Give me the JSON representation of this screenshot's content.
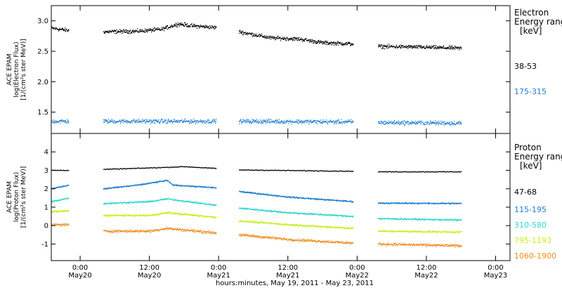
{
  "chart_data": {
    "xlabel": "hours:minutes, May 19, 2011 - May 23, 2011",
    "x_ticks": [
      {
        "time": "May 20 00:00",
        "line1": "0:00",
        "line2": "May20"
      },
      {
        "time": "May 20 12:00",
        "line1": "12:00",
        "line2": "May20"
      },
      {
        "time": "May 21 00:00",
        "line1": "0:00",
        "line2": "May21"
      },
      {
        "time": "May 21 12:00",
        "line1": "12:00",
        "line2": "May21"
      },
      {
        "time": "May 22 00:00",
        "line1": "0:00",
        "line2": "May22"
      },
      {
        "time": "May 22 12:00",
        "line1": "12:00",
        "line2": "May22"
      },
      {
        "time": "May 23 00:00",
        "line1": "0:00",
        "line2": "May23"
      }
    ],
    "xlim": [
      "May 19 19:00",
      "May 23 02:30"
    ],
    "data_segments": [
      [
        "May 19 19:00",
        "May 19 22:00"
      ],
      [
        "May 20 04:00",
        "May 20 23:30"
      ],
      [
        "May 21 03:30",
        "May 21 23:15"
      ],
      [
        "May 22 03:30",
        "May 22 18:00"
      ]
    ],
    "panels": [
      {
        "id": "electron",
        "type": "scatter",
        "ylabel_lines": [
          "ACE EPAM",
          "log(Electron Flux)",
          "[1/(cm²s ster MeV)]"
        ],
        "ylim": [
          1.15,
          3.25
        ],
        "y_ticks": [
          1.5,
          2.0,
          2.5,
          3.0
        ],
        "y_tick_labels": [
          "1.5",
          "2.0",
          "2.5",
          "3.0"
        ],
        "legend_title": [
          "Electron",
          "Energy ranges",
          "[keV]"
        ],
        "series": [
          {
            "name": "38-53",
            "color": "#000000",
            "scatter": 0.045,
            "trend": [
              [
                "May 19 19:00",
                2.88
              ],
              [
                "May 19 22:00",
                2.84
              ],
              [
                "May 20 04:00",
                2.82
              ],
              [
                "May 20 10:00",
                2.83
              ],
              [
                "May 20 14:00",
                2.86
              ],
              [
                "May 20 17:00",
                2.95
              ],
              [
                "May 20 19:00",
                2.92
              ],
              [
                "May 20 23:30",
                2.89
              ],
              [
                "May 21 03:30",
                2.82
              ],
              [
                "May 21 09:00",
                2.72
              ],
              [
                "May 21 14:00",
                2.7
              ],
              [
                "May 21 18:00",
                2.64
              ],
              [
                "May 21 23:15",
                2.62
              ],
              [
                "May 22 03:30",
                2.58
              ],
              [
                "May 22 10:00",
                2.57
              ],
              [
                "May 22 18:00",
                2.55
              ]
            ]
          },
          {
            "name": "175-315",
            "color": "#1e7fd0",
            "scatter": 0.05,
            "trend": [
              [
                "May 19 19:00",
                1.35
              ],
              [
                "May 20 23:30",
                1.35
              ],
              [
                "May 21 03:30",
                1.35
              ],
              [
                "May 21 23:15",
                1.34
              ],
              [
                "May 22 03:30",
                1.33
              ],
              [
                "May 22 18:00",
                1.32
              ]
            ]
          }
        ]
      },
      {
        "id": "proton",
        "type": "scatter",
        "ylabel_lines": [
          "ACE EPAM",
          "log(Proton Flux)",
          "[1/(cm²s ster MeV)]"
        ],
        "ylim": [
          -1.9,
          5.0
        ],
        "y_ticks": [
          -1,
          0,
          1,
          2,
          3,
          4
        ],
        "y_tick_labels": [
          "-1",
          "0",
          "1",
          "2",
          "3",
          "4"
        ],
        "legend_title": [
          "Proton",
          "Energy ranges",
          "[keV]"
        ],
        "series": [
          {
            "name": "47-68",
            "color": "#000000",
            "scatter": 0.03,
            "trend": [
              [
                "May 19 19:00",
                3.0
              ],
              [
                "May 19 22:00",
                3.0
              ],
              [
                "May 20 04:00",
                3.05
              ],
              [
                "May 20 14:00",
                3.15
              ],
              [
                "May 20 18:00",
                3.2
              ],
              [
                "May 20 23:30",
                3.1
              ],
              [
                "May 21 03:30",
                3.02
              ],
              [
                "May 21 23:15",
                2.95
              ],
              [
                "May 22 03:30",
                2.92
              ],
              [
                "May 22 18:00",
                2.92
              ]
            ]
          },
          {
            "name": "115-195",
            "color": "#1e7fd0",
            "scatter": 0.05,
            "trend": [
              [
                "May 19 19:00",
                2.0
              ],
              [
                "May 19 22:00",
                2.2
              ],
              [
                "May 20 04:00",
                2.0
              ],
              [
                "May 20 10:00",
                2.2
              ],
              [
                "May 20 15:00",
                2.45
              ],
              [
                "May 20 16:00",
                2.2
              ],
              [
                "May 20 23:30",
                2.05
              ],
              [
                "May 21 03:30",
                1.85
              ],
              [
                "May 21 12:00",
                1.55
              ],
              [
                "May 21 23:15",
                1.3
              ],
              [
                "May 22 03:30",
                1.22
              ],
              [
                "May 22 18:00",
                1.2
              ]
            ]
          },
          {
            "name": "310-580",
            "color": "#30d8cc",
            "scatter": 0.06,
            "trend": [
              [
                "May 19 19:00",
                1.3
              ],
              [
                "May 19 22:00",
                1.5
              ],
              [
                "May 20 04:00",
                1.2
              ],
              [
                "May 20 12:00",
                1.3
              ],
              [
                "May 20 15:00",
                1.45
              ],
              [
                "May 20 23:30",
                1.1
              ],
              [
                "May 21 03:30",
                0.95
              ],
              [
                "May 21 12:00",
                0.7
              ],
              [
                "May 21 23:15",
                0.5
              ],
              [
                "May 22 03:30",
                0.38
              ],
              [
                "May 22 18:00",
                0.3
              ]
            ]
          },
          {
            "name": "795-1193",
            "color": "#c8ee20",
            "scatter": 0.07,
            "trend": [
              [
                "May 19 19:00",
                0.75
              ],
              [
                "May 19 22:00",
                0.8
              ],
              [
                "May 20 04:00",
                0.55
              ],
              [
                "May 20 12:00",
                0.55
              ],
              [
                "May 20 15:00",
                0.7
              ],
              [
                "May 20 23:30",
                0.45
              ],
              [
                "May 21 03:30",
                0.25
              ],
              [
                "May 21 12:00",
                0.05
              ],
              [
                "May 21 23:15",
                -0.15
              ],
              [
                "May 22 03:30",
                -0.3
              ],
              [
                "May 22 18:00",
                -0.35
              ]
            ]
          },
          {
            "name": "1060-1900",
            "color": "#f08c1e",
            "scatter": 0.1,
            "trend": [
              [
                "May 19 19:00",
                0.05
              ],
              [
                "May 19 22:00",
                0.05
              ],
              [
                "May 20 04:00",
                -0.3
              ],
              [
                "May 20 12:00",
                -0.3
              ],
              [
                "May 20 15:00",
                -0.15
              ],
              [
                "May 20 23:30",
                -0.4
              ],
              [
                "May 21 03:30",
                -0.5
              ],
              [
                "May 21 12:00",
                -0.75
              ],
              [
                "May 21 23:15",
                -0.95
              ],
              [
                "May 22 03:30",
                -1.0
              ],
              [
                "May 22 18:00",
                -1.1
              ]
            ]
          }
        ]
      }
    ]
  }
}
